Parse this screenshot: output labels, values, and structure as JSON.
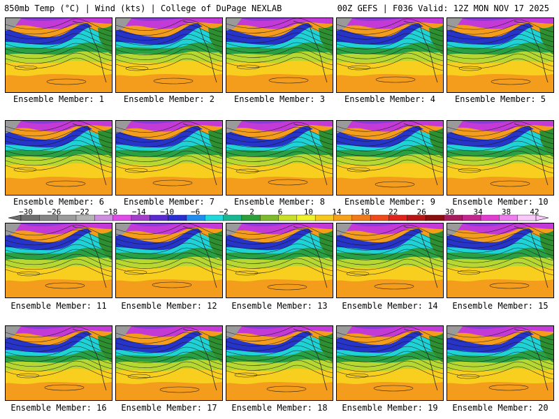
{
  "header": {
    "left": "850mb Temp (°C) | Wind (kts) | College of DuPage NEXLAB",
    "right": "00Z GEFS | F036 Valid: 12Z MON NOV 17 2025"
  },
  "panels": [
    {
      "label": "Ensemble Member: 1"
    },
    {
      "label": "Ensemble Member: 2"
    },
    {
      "label": "Ensemble Member: 3"
    },
    {
      "label": "Ensemble Member: 4"
    },
    {
      "label": "Ensemble Member: 5"
    },
    {
      "label": "Ensemble Member: 6"
    },
    {
      "label": "Ensemble Member: 7"
    },
    {
      "label": "Ensemble Member: 8"
    },
    {
      "label": "Ensemble Member: 9"
    },
    {
      "label": "Ensemble Member: 10"
    },
    {
      "label": "Ensemble Member: 11"
    },
    {
      "label": "Ensemble Member: 12"
    },
    {
      "label": "Ensemble Member: 13"
    },
    {
      "label": "Ensemble Member: 14"
    },
    {
      "label": "Ensemble Member: 15"
    },
    {
      "label": "Ensemble Member: 16"
    },
    {
      "label": "Ensemble Member: 17"
    },
    {
      "label": "Ensemble Member: 18"
    },
    {
      "label": "Ensemble Member: 19"
    },
    {
      "label": "Ensemble Member: 20"
    }
  ],
  "colorbar": {
    "labels": [
      "−30",
      "−26",
      "−22",
      "−18",
      "−14",
      "−10",
      "−6",
      "−2",
      "2",
      "6",
      "10",
      "14",
      "18",
      "22",
      "26",
      "30",
      "34",
      "38",
      "42"
    ],
    "colors": [
      "#6f6f6f",
      "#858585",
      "#9c9c9c",
      "#b4b4b4",
      "#cf8fe0",
      "#e04ce8",
      "#a43ccc",
      "#5a2bd0",
      "#2a2fd2",
      "#1f8ef0",
      "#21d8dc",
      "#19b893",
      "#2a9f3a",
      "#7dbb2c",
      "#c9df2a",
      "#f1f22e",
      "#f7c81f",
      "#f7a21a",
      "#f27a18",
      "#ef4a1c",
      "#e2231c",
      "#b81616",
      "#8c0f10",
      "#a81c5e",
      "#c42690",
      "#e23cd0",
      "#f07cf0",
      "#fbc8fb"
    ]
  }
}
